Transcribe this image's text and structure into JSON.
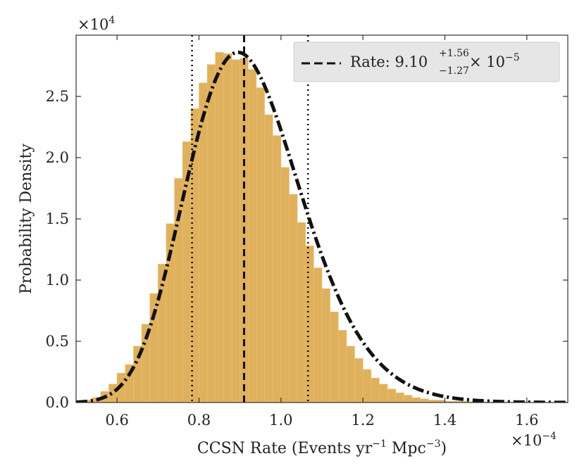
{
  "chart_data": {
    "type": "histogram",
    "xlabel": "CCSN Rate (Events yr",
    "xlabel_sup1": "−1",
    "xlabel_mid": " Mpc",
    "xlabel_sup2": "−3",
    "xlabel_end": ")",
    "ylabel": "Probability Density",
    "x_scale_base": "×10",
    "x_scale_exp": "−4",
    "y_scale_base": "×10",
    "y_scale_exp": "4",
    "xlim": [
      0.5,
      1.7
    ],
    "ylim": [
      0,
      3.0
    ],
    "xticks": [
      0.6,
      0.8,
      1.0,
      1.2,
      1.4,
      1.6
    ],
    "xtick_labels": [
      "0.6",
      "0.8",
      "1.0",
      "1.2",
      "1.4",
      "1.6"
    ],
    "yticks": [
      0.0,
      0.5,
      1.0,
      1.5,
      2.0,
      2.5
    ],
    "ytick_labels": [
      "0.0",
      "0.5",
      "1.0",
      "1.5",
      "2.0",
      "2.5"
    ],
    "median": 0.91,
    "lower": 0.783,
    "upper": 1.066,
    "legend": {
      "label": "Rate: ",
      "value": "9.10",
      "plus": "+1.56",
      "minus": "−1.27",
      "times": " × 10",
      "exp": "−5"
    },
    "bins": {
      "x": [
        0.5,
        0.52,
        0.54,
        0.56,
        0.58,
        0.6,
        0.62,
        0.64,
        0.66,
        0.68,
        0.7,
        0.72,
        0.74,
        0.76,
        0.78,
        0.8,
        0.82,
        0.84,
        0.86,
        0.88,
        0.9,
        0.92,
        0.94,
        0.96,
        0.98,
        1.0,
        1.02,
        1.04,
        1.06,
        1.08,
        1.1,
        1.12,
        1.14,
        1.16,
        1.18,
        1.2,
        1.22,
        1.24,
        1.26,
        1.28,
        1.3,
        1.32,
        1.34,
        1.36,
        1.38,
        1.4,
        1.42,
        1.44,
        1.46,
        1.48,
        1.5,
        1.52,
        1.54,
        1.56,
        1.58,
        1.6,
        1.62,
        1.64,
        1.66,
        1.68
      ],
      "width": 0.02,
      "density": [
        0.01,
        0.02,
        0.04,
        0.09,
        0.15,
        0.24,
        0.31,
        0.46,
        0.64,
        0.89,
        1.13,
        1.46,
        1.83,
        2.13,
        2.4,
        2.61,
        2.76,
        2.86,
        2.85,
        2.8,
        2.81,
        2.72,
        2.57,
        2.35,
        2.18,
        1.92,
        1.7,
        1.47,
        1.28,
        1.1,
        0.93,
        0.74,
        0.59,
        0.46,
        0.36,
        0.27,
        0.2,
        0.15,
        0.11,
        0.08,
        0.06,
        0.04,
        0.03,
        0.02,
        0.02,
        0.01,
        0.01,
        0.01,
        0.005,
        0.005,
        0.004,
        0.003,
        0.002,
        0.002,
        0.002,
        0.001,
        0.001,
        0.001,
        0.001,
        0.001
      ]
    },
    "fit_curve": {
      "style": "dash-dot",
      "peak": 2.86,
      "mode": 0.895,
      "sigma": 0.14
    },
    "colors": {
      "bar_fill": "#e0b15d",
      "bar_edge": "#e8c07a",
      "curve": "#111111",
      "axes": "#333333",
      "legend_bg": "#e6e6e6",
      "legend_border": "#cccccc"
    }
  }
}
